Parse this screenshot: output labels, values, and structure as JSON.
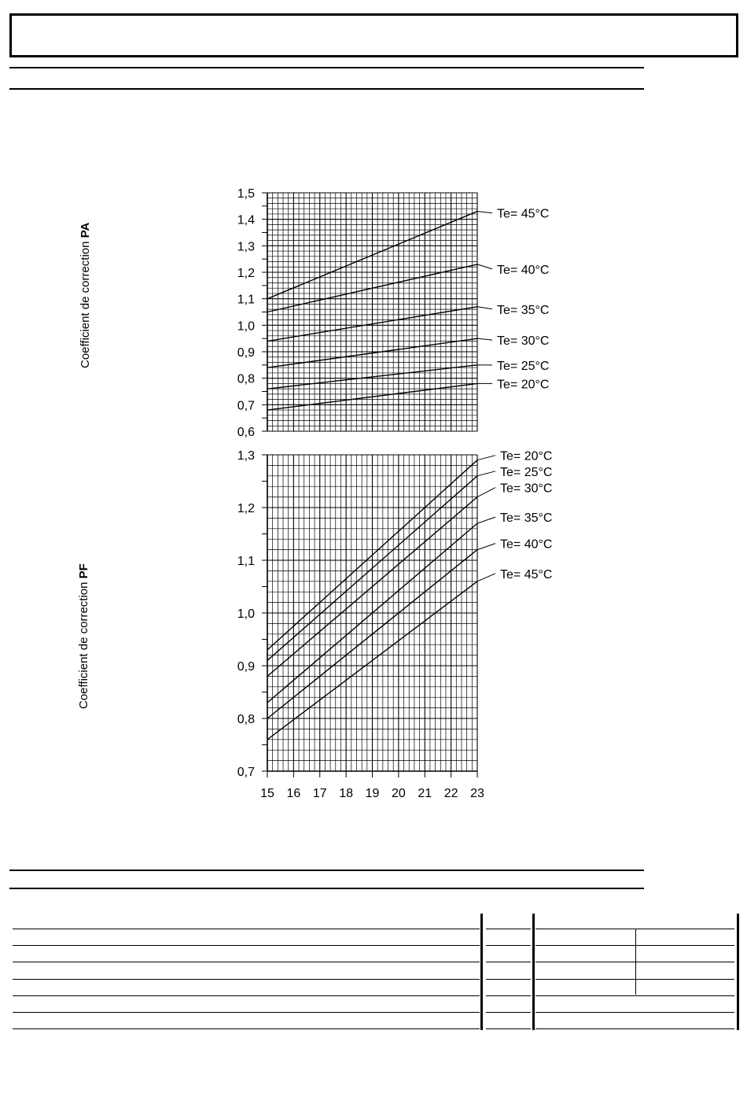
{
  "chart_data": [
    {
      "type": "line",
      "ylabel_prefix": "Coefficient de correction ",
      "ylabel_bold": "PA",
      "x": [
        15,
        23
      ],
      "xlim": [
        15,
        23
      ],
      "ylim": [
        0.6,
        1.5
      ],
      "yticks": [
        "1,5",
        "1,4",
        "1,3",
        "1,2",
        "1,1",
        "1,0",
        "0,9",
        "0,8",
        "0,7",
        "0,6"
      ],
      "grid": true,
      "series": [
        {
          "name": "Te= 45°C",
          "values": [
            1.1,
            1.43
          ]
        },
        {
          "name": "Te= 40°C",
          "values": [
            1.05,
            1.23
          ]
        },
        {
          "name": "Te= 35°C",
          "values": [
            0.94,
            1.07
          ]
        },
        {
          "name": "Te= 30°C",
          "values": [
            0.84,
            0.95
          ]
        },
        {
          "name": "Te= 25°C",
          "values": [
            0.76,
            0.85
          ]
        },
        {
          "name": "Te= 20°C",
          "values": [
            0.68,
            0.78
          ]
        }
      ]
    },
    {
      "type": "line",
      "ylabel_prefix": "Coefficient de correction ",
      "ylabel_bold": "PF",
      "x": [
        15,
        23
      ],
      "xlim": [
        15,
        23
      ],
      "ylim": [
        0.7,
        1.3
      ],
      "yticks": [
        "1,3",
        "1,2",
        "1,1",
        "1,0",
        "0,9",
        "0,8",
        "0,7"
      ],
      "xticks": [
        "15",
        "16",
        "17",
        "18",
        "19",
        "20",
        "21",
        "22",
        "23"
      ],
      "grid": true,
      "series": [
        {
          "name": "Te= 20°C",
          "values": [
            0.93,
            1.29
          ]
        },
        {
          "name": "Te= 25°C",
          "values": [
            0.91,
            1.26
          ]
        },
        {
          "name": "Te= 30°C",
          "values": [
            0.88,
            1.22
          ]
        },
        {
          "name": "Te= 35°C",
          "values": [
            0.83,
            1.17
          ]
        },
        {
          "name": "Te= 40°C",
          "values": [
            0.8,
            1.12
          ]
        },
        {
          "name": "Te= 45°C",
          "values": [
            0.76,
            1.06
          ]
        }
      ]
    }
  ]
}
